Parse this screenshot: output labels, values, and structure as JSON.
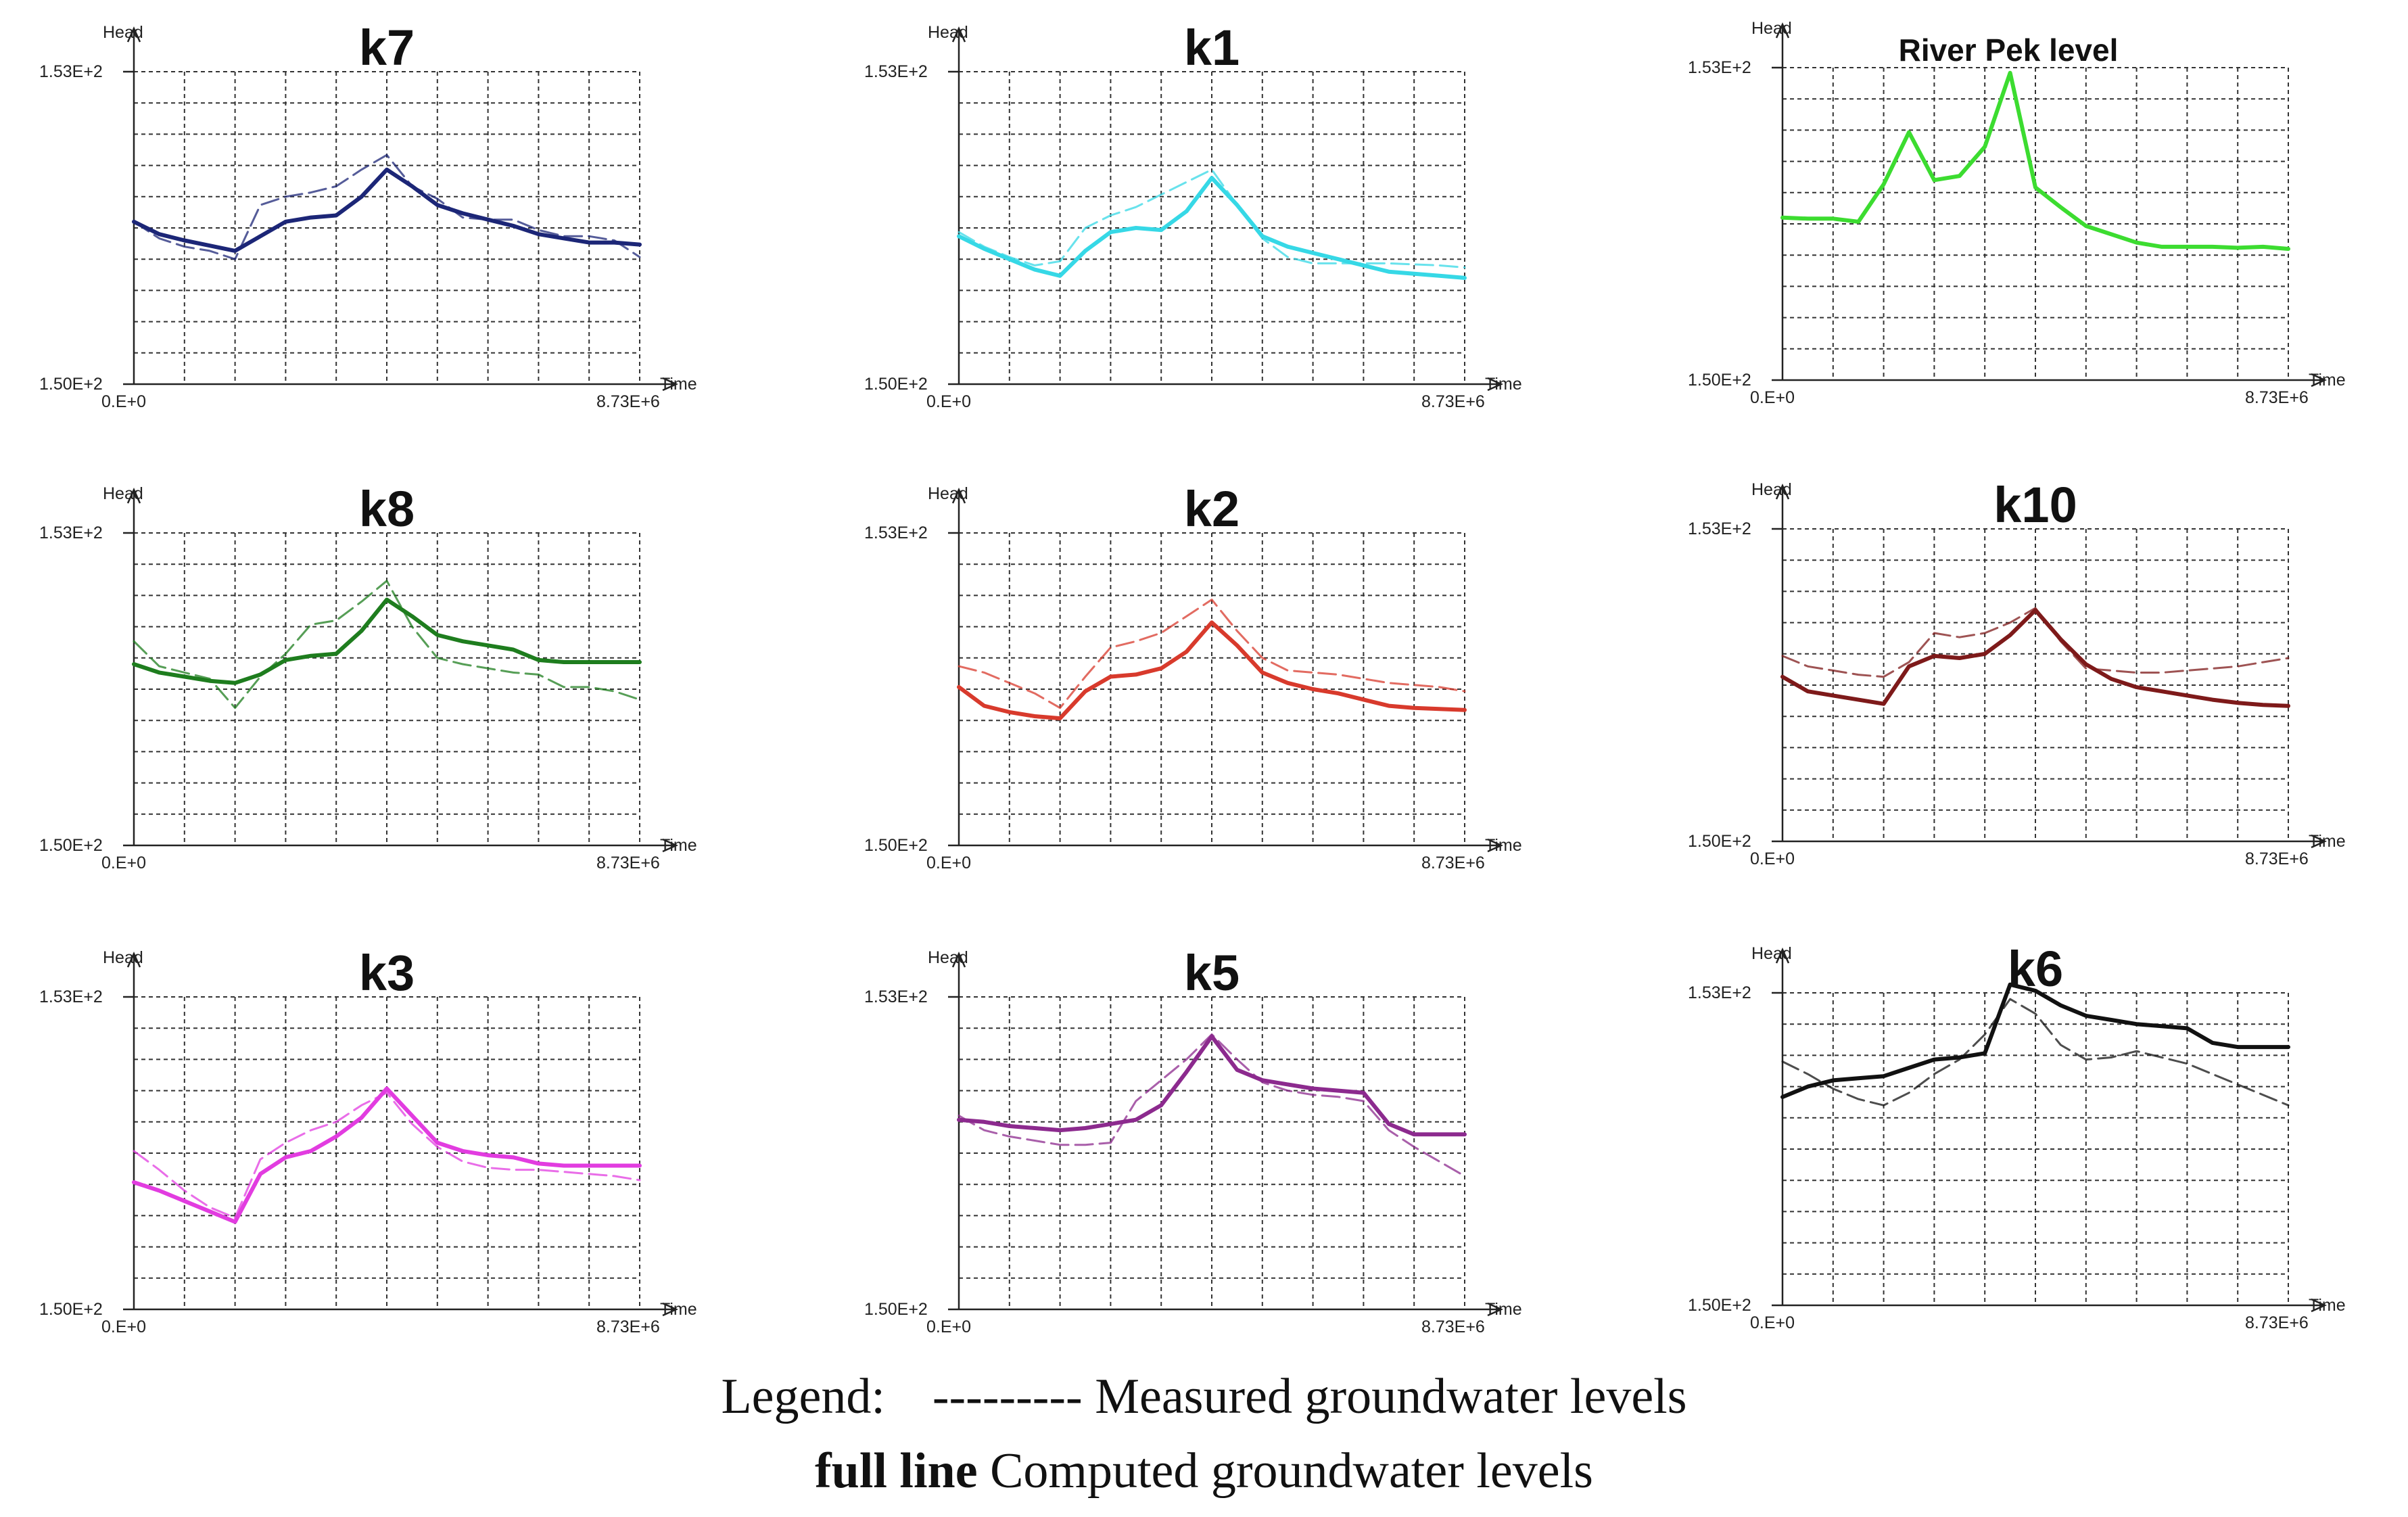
{
  "figure": {
    "y_label": "Head",
    "x_label": "Time",
    "y_max_label": "1.53E+2",
    "y_min_label": "1.50E+2",
    "x_min_label": "0.E+0",
    "x_max_label": "8.73E+6"
  },
  "legend": {
    "prefix": "Legend:",
    "measured_symbol": "---------",
    "measured_text": "Measured groundwater levels",
    "computed_symbol": "full line",
    "computed_text": "Computed groundwater levels"
  },
  "chart_data": [
    {
      "type": "line",
      "title": "k7",
      "color": "#1c2677",
      "xlabel": "Time",
      "ylabel": "Head",
      "xlim": [
        0,
        8730000
      ],
      "ylim": [
        150,
        153
      ],
      "x": [
        0,
        0.5,
        1,
        1.5,
        2,
        2.5,
        3,
        3.5,
        4,
        4.5,
        5,
        5.5,
        6,
        6.5,
        7,
        7.5,
        8,
        8.5,
        9,
        9.5,
        10
      ],
      "series": [
        {
          "name": "Measured groundwater levels",
          "style": "dashed",
          "values": [
            151.56,
            151.4,
            151.32,
            151.28,
            151.2,
            151.72,
            151.8,
            151.84,
            151.9,
            152.06,
            152.2,
            151.9,
            151.78,
            151.6,
            151.58,
            151.58,
            151.48,
            151.42,
            151.42,
            151.38,
            151.22
          ]
        },
        {
          "name": "Computed groundwater levels",
          "style": "solid",
          "values": [
            151.56,
            151.44,
            151.38,
            151.33,
            151.28,
            151.42,
            151.56,
            151.6,
            151.62,
            151.8,
            152.06,
            151.9,
            151.72,
            151.64,
            151.58,
            151.52,
            151.44,
            151.4,
            151.36,
            151.36,
            151.34
          ]
        }
      ]
    },
    {
      "type": "line",
      "title": "k1",
      "color": "#36d8e6",
      "xlabel": "Time",
      "ylabel": "Head",
      "xlim": [
        0,
        8730000
      ],
      "ylim": [
        150,
        153
      ],
      "x": [
        0,
        0.5,
        1,
        1.5,
        2,
        2.5,
        3,
        3.5,
        4,
        4.5,
        5,
        5.5,
        6,
        6.5,
        7,
        7.5,
        8,
        8.5,
        9,
        9.5,
        10
      ],
      "series": [
        {
          "name": "Measured groundwater levels",
          "style": "dashed",
          "values": [
            151.46,
            151.32,
            151.22,
            151.14,
            151.18,
            151.5,
            151.62,
            151.7,
            151.82,
            151.94,
            152.06,
            151.72,
            151.4,
            151.22,
            151.16,
            151.16,
            151.16,
            151.16,
            151.15,
            151.14,
            151.12
          ]
        },
        {
          "name": "Computed groundwater levels",
          "style": "solid",
          "values": [
            151.42,
            151.3,
            151.2,
            151.1,
            151.04,
            151.28,
            151.46,
            151.5,
            151.48,
            151.66,
            151.98,
            151.72,
            151.42,
            151.32,
            151.26,
            151.2,
            151.14,
            151.08,
            151.06,
            151.04,
            151.02
          ]
        }
      ]
    },
    {
      "type": "line",
      "title": "River Pek level",
      "color": "#3cdc30",
      "xlabel": "Time",
      "ylabel": "Head",
      "xlim": [
        0,
        8730000
      ],
      "ylim": [
        150,
        153
      ],
      "x": [
        0,
        0.5,
        1,
        1.5,
        2,
        2.5,
        3,
        3.5,
        4,
        4.5,
        5,
        5.5,
        6,
        6.5,
        7,
        7.5,
        8,
        8.5,
        9,
        9.5,
        10
      ],
      "series": [
        {
          "name": "Computed groundwater levels",
          "style": "solid",
          "values": [
            151.56,
            151.55,
            151.55,
            151.52,
            151.88,
            152.38,
            151.92,
            151.96,
            152.24,
            152.95,
            151.85,
            151.66,
            151.48,
            151.4,
            151.32,
            151.28,
            151.28,
            151.28,
            151.27,
            151.28,
            151.26
          ]
        }
      ]
    },
    {
      "type": "line",
      "title": "k8",
      "color": "#1e7d1e",
      "xlabel": "Time",
      "ylabel": "Head",
      "xlim": [
        0,
        8730000
      ],
      "ylim": [
        150,
        153
      ],
      "x": [
        0,
        0.5,
        1,
        1.5,
        2,
        2.5,
        3,
        3.5,
        4,
        4.5,
        5,
        5.5,
        6,
        6.5,
        7,
        7.5,
        8,
        8.5,
        9,
        9.5,
        10
      ],
      "series": [
        {
          "name": "Measured groundwater levels",
          "style": "dashed",
          "values": [
            151.96,
            151.72,
            151.66,
            151.6,
            151.32,
            151.62,
            151.84,
            152.12,
            152.16,
            152.34,
            152.54,
            152.1,
            151.8,
            151.74,
            151.7,
            151.66,
            151.64,
            151.52,
            151.52,
            151.48,
            151.4
          ]
        },
        {
          "name": "Computed groundwater levels",
          "style": "solid",
          "values": [
            151.74,
            151.66,
            151.62,
            151.58,
            151.56,
            151.64,
            151.78,
            151.82,
            151.84,
            152.06,
            152.36,
            152.2,
            152.02,
            151.96,
            151.92,
            151.88,
            151.78,
            151.76,
            151.76,
            151.76,
            151.76
          ]
        }
      ]
    },
    {
      "type": "line",
      "title": "k2",
      "color": "#d83a2c",
      "xlabel": "Time",
      "ylabel": "Head",
      "xlim": [
        0,
        8730000
      ],
      "ylim": [
        150,
        153
      ],
      "x": [
        0,
        0.5,
        1,
        1.5,
        2,
        2.5,
        3,
        3.5,
        4,
        4.5,
        5,
        5.5,
        6,
        6.5,
        7,
        7.5,
        8,
        8.5,
        9,
        9.5,
        10
      ],
      "series": [
        {
          "name": "Measured groundwater levels",
          "style": "dashed",
          "values": [
            151.72,
            151.66,
            151.56,
            151.46,
            151.32,
            151.62,
            151.9,
            151.96,
            152.04,
            152.2,
            152.36,
            152.06,
            151.8,
            151.68,
            151.66,
            151.64,
            151.6,
            151.56,
            151.54,
            151.52,
            151.48
          ]
        },
        {
          "name": "Computed groundwater levels",
          "style": "solid",
          "values": [
            151.52,
            151.34,
            151.28,
            151.24,
            151.22,
            151.48,
            151.62,
            151.64,
            151.7,
            151.86,
            152.14,
            151.92,
            151.66,
            151.56,
            151.5,
            151.46,
            151.4,
            151.34,
            151.32,
            151.31,
            151.3
          ]
        }
      ]
    },
    {
      "type": "line",
      "title": "k10",
      "color": "#7e1a1a",
      "xlabel": "Time",
      "ylabel": "Head",
      "xlim": [
        0,
        8730000
      ],
      "ylim": [
        150,
        153
      ],
      "x": [
        0,
        0.5,
        1,
        1.5,
        2,
        2.5,
        3,
        3.5,
        4,
        4.5,
        5,
        5.5,
        6,
        6.5,
        7,
        7.5,
        8,
        8.5,
        9,
        9.5,
        10
      ],
      "series": [
        {
          "name": "Measured groundwater levels",
          "style": "dashed",
          "values": [
            151.78,
            151.68,
            151.64,
            151.6,
            151.58,
            151.72,
            152.0,
            151.96,
            152.0,
            152.1,
            152.24,
            151.92,
            151.66,
            151.64,
            151.62,
            151.62,
            151.64,
            151.66,
            151.68,
            151.72,
            151.76
          ]
        },
        {
          "name": "Computed groundwater levels",
          "style": "solid",
          "values": [
            151.58,
            151.44,
            151.4,
            151.36,
            151.32,
            151.68,
            151.78,
            151.76,
            151.8,
            151.98,
            152.22,
            151.94,
            151.7,
            151.56,
            151.48,
            151.44,
            151.4,
            151.36,
            151.33,
            151.31,
            151.3
          ]
        }
      ]
    },
    {
      "type": "line",
      "title": "k3",
      "color": "#e23ce0",
      "xlabel": "Time",
      "ylabel": "Head",
      "xlim": [
        0,
        8730000
      ],
      "ylim": [
        150,
        153
      ],
      "x": [
        0,
        0.5,
        1,
        1.5,
        2,
        2.5,
        3,
        3.5,
        4,
        4.5,
        5,
        5.5,
        6,
        6.5,
        7,
        7.5,
        8,
        8.5,
        9,
        9.5,
        10
      ],
      "series": [
        {
          "name": "Measured groundwater levels",
          "style": "dashed",
          "values": [
            151.52,
            151.34,
            151.14,
            150.98,
            150.88,
            151.44,
            151.6,
            151.72,
            151.8,
            151.96,
            152.08,
            151.78,
            151.56,
            151.42,
            151.36,
            151.34,
            151.34,
            151.32,
            151.3,
            151.28,
            151.24
          ]
        },
        {
          "name": "Computed groundwater levels",
          "style": "solid",
          "values": [
            151.22,
            151.14,
            151.04,
            150.94,
            150.84,
            151.3,
            151.46,
            151.52,
            151.66,
            151.84,
            152.12,
            151.86,
            151.6,
            151.52,
            151.48,
            151.46,
            151.4,
            151.38,
            151.38,
            151.38,
            151.38
          ]
        }
      ]
    },
    {
      "type": "line",
      "title": "k5",
      "color": "#8c2a8e",
      "xlabel": "Time",
      "ylabel": "Head",
      "xlim": [
        0,
        8730000
      ],
      "ylim": [
        150,
        153
      ],
      "x": [
        0,
        0.5,
        1,
        1.5,
        2,
        2.5,
        3,
        3.5,
        4,
        4.5,
        5,
        5.5,
        6,
        6.5,
        7,
        7.5,
        8,
        8.5,
        9,
        9.5,
        10
      ],
      "series": [
        {
          "name": "Measured groundwater levels",
          "style": "dashed",
          "values": [
            151.86,
            151.72,
            151.66,
            151.62,
            151.58,
            151.58,
            151.6,
            152.0,
            152.2,
            152.4,
            152.64,
            152.4,
            152.18,
            152.1,
            152.06,
            152.04,
            152.0,
            151.72,
            151.56,
            151.42,
            151.28
          ]
        },
        {
          "name": "Computed groundwater levels",
          "style": "solid",
          "values": [
            151.82,
            151.8,
            151.76,
            151.74,
            151.72,
            151.74,
            151.78,
            151.82,
            151.96,
            152.28,
            152.62,
            152.3,
            152.2,
            152.16,
            152.12,
            152.1,
            152.08,
            151.78,
            151.68,
            151.68,
            151.68
          ]
        }
      ]
    },
    {
      "type": "line",
      "title": "k6",
      "color": "#111111",
      "xlabel": "Time",
      "ylabel": "Head",
      "xlim": [
        0,
        8730000
      ],
      "ylim": [
        150,
        153
      ],
      "x": [
        0,
        0.5,
        1,
        1.5,
        2,
        2.5,
        3,
        3.5,
        4,
        4.5,
        5,
        5.5,
        6,
        6.5,
        7,
        7.5,
        8,
        8.5,
        9,
        9.5,
        10
      ],
      "series": [
        {
          "name": "Measured groundwater levels",
          "style": "dashed",
          "values": [
            152.34,
            152.22,
            152.08,
            151.98,
            151.92,
            152.04,
            152.22,
            152.36,
            152.6,
            152.94,
            152.8,
            152.5,
            152.36,
            152.38,
            152.44,
            152.38,
            152.32,
            152.22,
            152.12,
            152.02,
            151.92
          ]
        },
        {
          "name": "Computed groundwater levels",
          "style": "solid",
          "values": [
            152.0,
            152.1,
            152.16,
            152.18,
            152.2,
            152.28,
            152.36,
            152.38,
            152.42,
            153.08,
            153.02,
            152.88,
            152.78,
            152.74,
            152.7,
            152.68,
            152.66,
            152.52,
            152.48,
            152.48,
            152.48
          ]
        }
      ]
    }
  ]
}
